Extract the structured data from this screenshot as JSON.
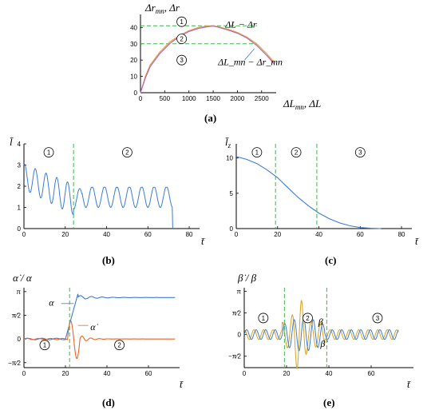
{
  "chart_data": [
    {
      "panel": "(a)",
      "type": "line",
      "ylabel": "Δr_mn, Δr",
      "xlabel": "ΔL_mn, ΔL",
      "xlim": [
        0,
        2800
      ],
      "ylim": [
        0,
        48
      ],
      "xticks": [
        0,
        500,
        1000,
        1500,
        2000,
        2500
      ],
      "yticks": [
        0,
        10,
        20,
        30,
        40
      ],
      "zones": [
        "1",
        "2",
        "3"
      ],
      "annotations": [
        "ΔL − Δr",
        "ΔL_mn − Δr_mn"
      ],
      "series": [
        {
          "name": "ΔL − Δr",
          "color": "#e8a23a",
          "x": [
            0,
            100,
            200,
            400,
            600,
            800,
            1000,
            1200,
            1400,
            1500,
            1600,
            1800,
            2000,
            2200,
            2400,
            2600,
            2750
          ],
          "y": [
            0,
            10,
            17,
            25,
            31,
            35,
            38,
            40,
            41,
            41,
            40.5,
            39,
            37,
            34,
            30,
            24,
            19
          ]
        },
        {
          "name": "ΔL_mn − Δr_mn",
          "color": "#b066b8",
          "x": [
            0,
            100,
            200,
            400,
            600,
            800,
            1000,
            1200,
            1400,
            1500,
            1600,
            1800,
            2000,
            2200,
            2400,
            2600,
            2750
          ],
          "y": [
            0,
            9,
            16,
            24,
            30,
            34.5,
            37.5,
            39.5,
            40.5,
            40.8,
            40.2,
            38.5,
            36.5,
            33.5,
            29,
            23,
            18
          ]
        }
      ],
      "reference_lines": [
        41,
        30
      ]
    },
    {
      "panel": "(b)",
      "type": "line",
      "ylabel": "l̄",
      "xlabel": "t̄",
      "xlim": [
        0,
        85
      ],
      "ylim": [
        0,
        4
      ],
      "xticks": [
        0,
        20,
        40,
        60,
        80
      ],
      "yticks": [
        0,
        1,
        2,
        3,
        4
      ],
      "zones": [
        "1",
        "2"
      ],
      "divider_x": [
        24
      ],
      "series": [
        {
          "name": "",
          "color": "#3b7bd4"
        }
      ]
    },
    {
      "panel": "(c)",
      "type": "line",
      "ylabel": "l̄_z",
      "xlabel": "t̄",
      "xlim": [
        0,
        85
      ],
      "ylim": [
        0,
        12
      ],
      "xticks": [
        0,
        20,
        40,
        60,
        80
      ],
      "yticks": [
        0,
        5,
        10
      ],
      "zones": [
        "1",
        "2",
        "3"
      ],
      "divider_x": [
        19,
        39
      ],
      "series": [
        {
          "name": "",
          "color": "#3b7bd4",
          "x": [
            0,
            5,
            10,
            15,
            20,
            25,
            30,
            35,
            40,
            45,
            50,
            55,
            60,
            65,
            70
          ],
          "y": [
            10.2,
            9.8,
            9.2,
            8.3,
            7.2,
            5.8,
            4.4,
            3.2,
            2.2,
            1.4,
            0.8,
            0.4,
            0.15,
            0.05,
            0
          ]
        }
      ]
    },
    {
      "panel": "(d)",
      "type": "line",
      "ylabel": "α̇ / α",
      "xlabel": "t̄",
      "xlim": [
        0,
        75
      ],
      "ylim": [
        -1.9,
        3.4
      ],
      "xticks": [
        0,
        20,
        40,
        60
      ],
      "ytick_labels": [
        "π",
        "π⁄2",
        "0",
        "−π⁄2"
      ],
      "zones": [
        "1",
        "2"
      ],
      "divider_x": [
        22
      ],
      "annotations": [
        "α",
        "α̇"
      ],
      "series": [
        {
          "name": "α",
          "color": "#3b7bd4"
        },
        {
          "name": "α̇",
          "color": "#e8652a"
        }
      ]
    },
    {
      "panel": "(e)",
      "type": "line",
      "ylabel": "β̇ / β",
      "xlabel": "t̄",
      "xlim": [
        0,
        80
      ],
      "ylim": [
        -2.4,
        3.4
      ],
      "xticks": [
        0,
        20,
        40,
        60
      ],
      "ytick_labels": [
        "π",
        "π⁄2",
        "0",
        "−π⁄2"
      ],
      "zones": [
        "1",
        "2",
        "3"
      ],
      "divider_x": [
        19,
        39
      ],
      "annotations": [
        "β",
        "β̇"
      ],
      "series": [
        {
          "name": "β",
          "color": "#3b7bd4"
        },
        {
          "name": "β̇",
          "color": "#d6a21e"
        }
      ]
    }
  ]
}
